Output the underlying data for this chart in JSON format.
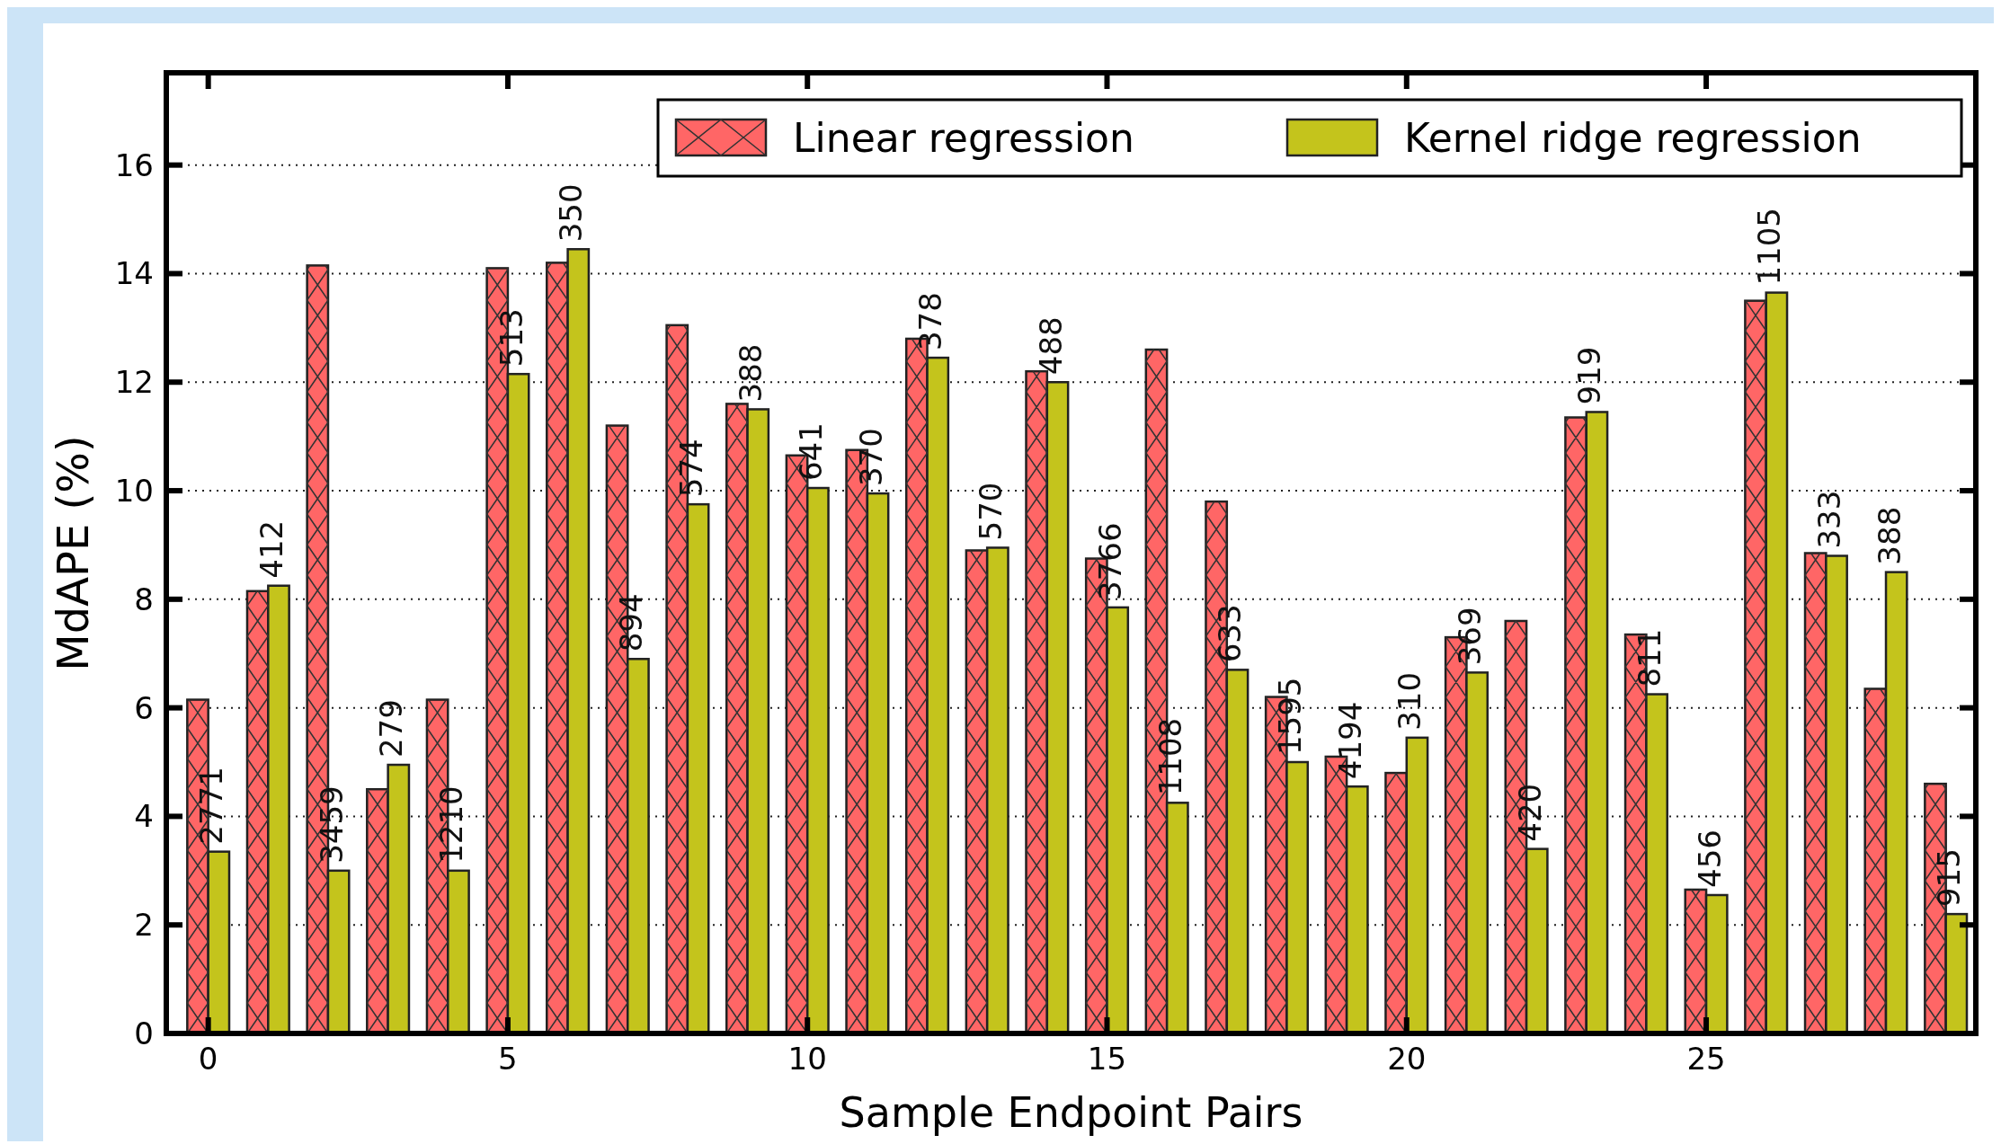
{
  "chart_data": {
    "type": "bar",
    "xlabel": "Sample Endpoint Pairs",
    "ylabel": "MdAPE (%)",
    "x": [
      0,
      1,
      2,
      3,
      4,
      5,
      6,
      7,
      8,
      9,
      10,
      11,
      12,
      13,
      14,
      15,
      16,
      17,
      18,
      19,
      20,
      21,
      22,
      23,
      24,
      25,
      26,
      27,
      28,
      29
    ],
    "series": [
      {
        "name": "Linear regression",
        "color": "#ff6666",
        "values": [
          6.15,
          8.15,
          14.15,
          4.5,
          6.15,
          14.1,
          14.2,
          11.2,
          13.05,
          11.6,
          10.65,
          10.75,
          12.8,
          8.9,
          12.2,
          8.75,
          12.6,
          9.8,
          6.2,
          5.1,
          4.8,
          7.3,
          7.6,
          11.35,
          7.35,
          2.65,
          13.5,
          8.85,
          6.35,
          4.6
        ]
      },
      {
        "name": "Kernel ridge regression",
        "color": "#c4c41c",
        "values": [
          3.35,
          8.25,
          3.0,
          4.95,
          3.0,
          12.15,
          14.45,
          6.9,
          9.75,
          11.5,
          10.05,
          9.95,
          12.45,
          8.95,
          12.0,
          7.85,
          4.25,
          6.7,
          5.0,
          4.55,
          5.45,
          6.65,
          3.4,
          11.45,
          6.25,
          2.55,
          13.65,
          8.8,
          8.5,
          2.2
        ]
      }
    ],
    "xlim": [
      -0.7,
      29.5
    ],
    "xticks": [
      0,
      5,
      10,
      15,
      20,
      25
    ],
    "ylim": [
      0,
      17.7
    ],
    "yticks": [
      0,
      2,
      4,
      6,
      8,
      10,
      12,
      14,
      16
    ],
    "grid": "y",
    "legend": "top right",
    "annotations": [
      {
        "text": "2771",
        "x": 0,
        "y": 3.35
      },
      {
        "text": "412",
        "x": 1,
        "y": 8.25
      },
      {
        "text": "3459",
        "x": 2,
        "y": 3.0
      },
      {
        "text": "279",
        "x": 3,
        "y": 4.95
      },
      {
        "text": "1210",
        "x": 4,
        "y": 3.0
      },
      {
        "text": "513",
        "x": 5,
        "y": 12.15
      },
      {
        "text": "350",
        "x": 6,
        "y": 14.45
      },
      {
        "text": "894",
        "x": 7,
        "y": 6.9
      },
      {
        "text": "574",
        "x": 8,
        "y": 9.75
      },
      {
        "text": "388",
        "x": 9,
        "y": 11.5
      },
      {
        "text": "641",
        "x": 10,
        "y": 10.05
      },
      {
        "text": "370",
        "x": 11,
        "y": 9.95
      },
      {
        "text": "378",
        "x": 12,
        "y": 12.45
      },
      {
        "text": "570",
        "x": 13,
        "y": 8.95
      },
      {
        "text": "488",
        "x": 14,
        "y": 12.0
      },
      {
        "text": "3766",
        "x": 15,
        "y": 7.85
      },
      {
        "text": "1108",
        "x": 16,
        "y": 4.25
      },
      {
        "text": "633",
        "x": 17,
        "y": 6.7
      },
      {
        "text": "1595",
        "x": 18,
        "y": 5.0
      },
      {
        "text": "4194",
        "x": 19,
        "y": 4.55
      },
      {
        "text": "310",
        "x": 20,
        "y": 5.45
      },
      {
        "text": "369",
        "x": 21,
        "y": 6.65
      },
      {
        "text": "420",
        "x": 22,
        "y": 3.4
      },
      {
        "text": "919",
        "x": 23,
        "y": 11.45
      },
      {
        "text": "811",
        "x": 24,
        "y": 6.25
      },
      {
        "text": "456",
        "x": 25,
        "y": 2.55
      },
      {
        "text": "1105",
        "x": 26,
        "y": 13.65
      },
      {
        "text": "333",
        "x": 27,
        "y": 8.8
      },
      {
        "text": "388",
        "x": 28,
        "y": 8.5
      },
      {
        "text": "915",
        "x": 29,
        "y": 2.2
      }
    ]
  }
}
